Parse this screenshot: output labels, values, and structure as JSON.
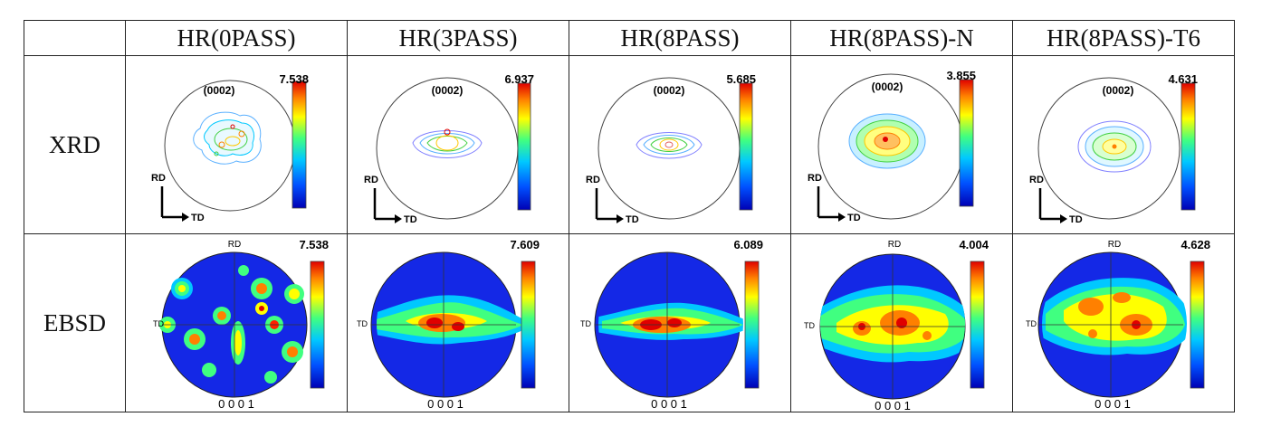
{
  "table": {
    "corner": "",
    "columns": [
      "HR(0PASS)",
      "HR(3PASS)",
      "HR(8PASS)",
      "HR(8PASS)-N",
      "HR(8PASS)-T6"
    ],
    "rows": [
      {
        "label": "XRD",
        "plane": "(0002)",
        "axis_rd": "RD",
        "axis_td": "TD",
        "max_values": [
          "7.538",
          "6.937",
          "5.685",
          "3.855",
          "4.631"
        ]
      },
      {
        "label": "EBSD",
        "top_label": "RD",
        "side_label": "TD",
        "bottom_label": "0 0 0 1",
        "max_values": [
          "7.538",
          "7.609",
          "6.089",
          "4.004",
          "4.628"
        ]
      }
    ]
  },
  "colors": {
    "colorbar": [
      "#0000b4",
      "#0050ff",
      "#00c8ff",
      "#40ff80",
      "#ffff00",
      "#ff8000",
      "#e00000"
    ],
    "ebsd_background": "#1428e6",
    "border": "#222222"
  }
}
